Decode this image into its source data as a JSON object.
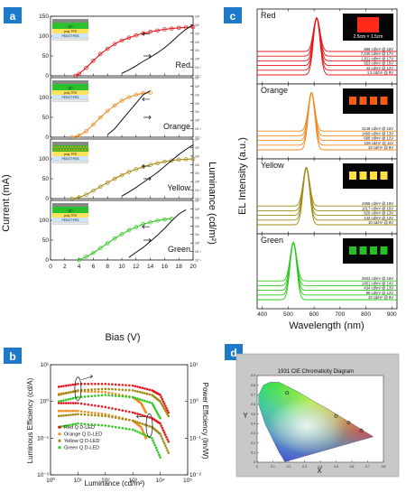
{
  "chart_data": [
    {
      "id": "a",
      "type": "line",
      "panel_label": "a",
      "xlabel": "Bias (V)",
      "ylabel_left": "Current (mA)",
      "ylabel_right": "Luminance (cd/m²)",
      "xlim": [
        0,
        20
      ],
      "xticks": [
        0,
        2,
        4,
        6,
        8,
        10,
        12,
        14,
        16,
        18,
        20
      ],
      "ylim_left": [
        0,
        150
      ],
      "yticks_left": [
        0,
        50,
        100,
        150
      ],
      "right_scale": "log",
      "ylim_right": [
        0.01,
        100000
      ],
      "yticks_right": [
        "10⁻²",
        "10⁻¹",
        "10⁰",
        "10¹",
        "10²",
        "10³",
        "10⁴",
        "10⁵"
      ],
      "subpanels": [
        {
          "name": "Red",
          "color": "#e8161b",
          "current": {
            "x": [
              3.5,
              4,
              5,
              6,
              7,
              8,
              9,
              10,
              11,
              12,
              13,
              14,
              15,
              16,
              17,
              18,
              19,
              20
            ],
            "y": [
              0,
              5,
              20,
              38,
              55,
              68,
              80,
              89,
              96,
              102,
              107,
              111,
              114,
              117,
              119,
              121,
              122,
              123
            ]
          },
          "luminance": {
            "x": [
              10,
              11,
              12,
              13,
              14,
              15,
              16,
              17,
              18,
              19,
              20
            ],
            "y": [
              0.02,
              0.05,
              0.15,
              0.5,
              1.5,
              5,
              20,
              100,
              600,
              3000,
              10000
            ]
          },
          "layers": [
            "QD",
            "poly-TPD",
            "PEDOT:PSS"
          ]
        },
        {
          "name": "Orange",
          "color": "#f28a1e",
          "current": {
            "x": [
              3,
              4,
              5,
              6,
              7,
              8,
              9,
              10,
              11,
              12,
              13,
              14
            ],
            "y": [
              0,
              4,
              15,
              32,
              50,
              66,
              80,
              92,
              101,
              107,
              111,
              112
            ]
          },
          "luminance": {
            "x": [
              8,
              9,
              10,
              11,
              12,
              13,
              14
            ],
            "y": [
              0.02,
              0.1,
              1,
              10,
              100,
              1000,
              3000
            ]
          },
          "layers": [
            "QD",
            "poly-TPD",
            "PEDOT:PSS"
          ]
        },
        {
          "name": "Yellow",
          "color": "#a38a12",
          "current": {
            "x": [
              3,
              4,
              5,
              6,
              7,
              8,
              9,
              10,
              11,
              12,
              13,
              14,
              15,
              16,
              17,
              18,
              19,
              20
            ],
            "y": [
              0,
              3,
              10,
              20,
              30,
              40,
              50,
              59,
              67,
              74,
              80,
              85,
              89,
              93,
              96,
              98,
              99,
              100
            ]
          },
          "luminance": {
            "x": [
              10,
              11,
              12,
              13,
              14,
              15,
              16,
              17,
              18,
              19,
              20
            ],
            "y": [
              0.02,
              0.06,
              0.2,
              0.8,
              3,
              12,
              60,
              300,
              1500,
              6000,
              20000
            ]
          },
          "layers": [
            "QD",
            "poly-TPD",
            "PEDOT:PSS"
          ]
        },
        {
          "name": "Green",
          "color": "#2ec81e",
          "current": {
            "x": [
              4,
              5,
              6,
              7,
              8,
              9,
              10,
              11,
              12,
              13,
              14,
              15,
              16,
              17
            ],
            "y": [
              0,
              8,
              18,
              30,
              42,
              54,
              65,
              75,
              83,
              90,
              95,
              99,
              102,
              104
            ]
          },
          "luminance": {
            "x": [
              11,
              12,
              13,
              14,
              15,
              16,
              17,
              18,
              19
            ],
            "y": [
              0.02,
              0.08,
              0.3,
              1.5,
              8,
              50,
              400,
              2500,
              8000
            ]
          },
          "layers": [
            "QD",
            "poly-TPD",
            "PEDOT:PSS"
          ]
        }
      ]
    },
    {
      "id": "b",
      "type": "scatter",
      "panel_label": "b",
      "xlabel": "Luminance (cd/m²)",
      "ylabel_left": "Luminous Efficiency (cd/A)",
      "ylabel_right": "Power Efficiency (lm/W)",
      "x_scale": "log",
      "y_scale": "log",
      "xlim": [
        1,
        100000
      ],
      "xticks": [
        "10⁰",
        "10¹",
        "10²",
        "10³",
        "10⁴",
        "10⁵"
      ],
      "ylim": [
        0.01,
        10
      ],
      "yticks": [
        "10⁻²",
        "10⁻¹",
        "10⁰",
        "10¹"
      ],
      "series": [
        {
          "name": "Red Q D-LED",
          "color": "#e8161b",
          "luminous_efficiency": {
            "x": [
              2,
              10,
              100,
              1000,
              5000,
              10000,
              20000
            ],
            "y": [
              2.5,
              3.0,
              3.0,
              2.7,
              2.0,
              1.5,
              0.5
            ]
          },
          "power_efficiency": {
            "x": [
              2,
              10,
              100,
              1000,
              5000,
              10000,
              20000
            ],
            "y": [
              0.9,
              0.9,
              0.7,
              0.5,
              0.35,
              0.25,
              0.08
            ]
          }
        },
        {
          "name": "Orange Q D-LED",
          "color": "#f28a1e",
          "luminous_efficiency": {
            "x": [
              2,
              10,
              100,
              1000,
              2000,
              3000
            ],
            "y": [
              1.6,
              1.9,
              1.8,
              1.3,
              0.9,
              0.5
            ]
          },
          "power_efficiency": {
            "x": [
              2,
              10,
              100,
              1000,
              2000,
              3000
            ],
            "y": [
              0.55,
              0.55,
              0.45,
              0.3,
              0.2,
              0.1
            ]
          }
        },
        {
          "name": "Yellow Q D-LED",
          "color": "#a38a12",
          "luminous_efficiency": {
            "x": [
              2,
              10,
              100,
              1000,
              5000,
              10000,
              20000
            ],
            "y": [
              1.5,
              2.0,
              2.2,
              2.0,
              1.5,
              1.0,
              0.4
            ]
          },
          "power_efficiency": {
            "x": [
              2,
              10,
              100,
              1000,
              5000,
              10000,
              20000
            ],
            "y": [
              0.4,
              0.45,
              0.4,
              0.3,
              0.2,
              0.13,
              0.04
            ]
          }
        },
        {
          "name": "Green Q D-LED",
          "color": "#2ec81e",
          "luminous_efficiency": {
            "x": [
              2,
              10,
              100,
              1000,
              5000,
              10000
            ],
            "y": [
              1.0,
              1.3,
              1.5,
              1.3,
              0.9,
              0.35
            ]
          },
          "power_efficiency": {
            "x": [
              2,
              10,
              100,
              1000,
              5000,
              10000
            ],
            "y": [
              0.2,
              0.25,
              0.22,
              0.17,
              0.1,
              0.03
            ]
          }
        }
      ],
      "legend_position": "bottom-left"
    },
    {
      "id": "c",
      "type": "line",
      "panel_label": "c",
      "xlabel": "Wavelength (nm)",
      "ylabel": "EL Intensity (a.u.)",
      "xlim": [
        380,
        920
      ],
      "xticks": [
        400,
        500,
        600,
        700,
        800,
        900
      ],
      "subpanels": [
        {
          "name": "Red",
          "color": "#e8161b",
          "peak": 610,
          "fwhm": 30,
          "labels": [
            "886 cd/m² @ 18V",
            "7,240 cd/m² @ 17V",
            "1,811 cd/m² @ 17V",
            "553 cd/m² @ 15V",
            "42 cd/m² @ 12V",
            "1.5 cd/m² @ 9V"
          ],
          "photo_caption": "2.5cm × 1.5cm"
        },
        {
          "name": "Orange",
          "color": "#f28a1e",
          "peak": 590,
          "fwhm": 30,
          "labels": [
            "3148 cd/m² @ 15V",
            "1499 cd/m² @ 13V",
            "688 cd/m² @ 12V",
            "106 cd/m² @ 11V",
            "10 cd/m² @ 9V"
          ],
          "photo_caption": ""
        },
        {
          "name": "Yellow",
          "color": "#a38a12",
          "peak": 570,
          "fwhm": 30,
          "labels": [
            "4458 cd/m² @ 19V",
            "1617 cd/m² @ 15V",
            "826 cd/m² @ 13V",
            "142 cd/m² @ 12V",
            "10 cd/m² @ 9V"
          ],
          "photo_caption": ""
        },
        {
          "name": "Green",
          "color": "#2ec81e",
          "peak": 520,
          "fwhm": 30,
          "labels": [
            "3933 cd/m² @ 16V",
            "1451 cd/m² @ 14V",
            "434 cd/m² @ 13V",
            "98 cd/m² @ 12V",
            "10 cd/m² @ 9V"
          ],
          "photo_caption": ""
        }
      ]
    },
    {
      "id": "d",
      "type": "scatter",
      "panel_label": "d",
      "title": "1931  CIE Chromaticity Diagram",
      "xlabel": "X",
      "ylabel": "Y",
      "xlim": [
        0,
        0.8
      ],
      "ylim": [
        0,
        0.9
      ],
      "xticks": [
        0.0,
        0.1,
        0.2,
        0.3,
        0.4,
        0.5,
        0.6,
        0.7,
        0.8
      ],
      "yticks": [
        0.0,
        0.1,
        0.2,
        0.3,
        0.4,
        0.5,
        0.6,
        0.7,
        0.8,
        0.9
      ],
      "points": [
        {
          "x": 0.66,
          "y": 0.33
        },
        {
          "x": 0.58,
          "y": 0.41
        },
        {
          "x": 0.5,
          "y": 0.48
        },
        {
          "x": 0.19,
          "y": 0.72
        }
      ]
    }
  ]
}
